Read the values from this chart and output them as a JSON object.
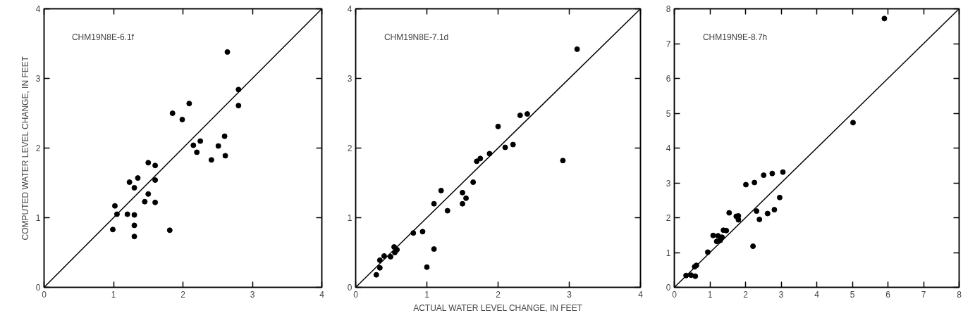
{
  "chart_data": [
    {
      "type": "scatter",
      "ylabel": "COMPUTED WATER LEVEL CHANGE, IN FEET",
      "annotations": [
        "CHM19N8E-6.1f"
      ],
      "xlim": [
        0,
        4
      ],
      "ylim": [
        0,
        4
      ],
      "xticks": [
        0,
        1,
        2,
        3,
        4
      ],
      "yticks": [
        0,
        1,
        2,
        3,
        4
      ],
      "grid": false,
      "series": [
        {
          "marker": "circle",
          "color": "#000000",
          "x": [
            2.64,
            2.8,
            2.8,
            1.85,
            1.99,
            2.09,
            2.15,
            2.25,
            2.2,
            2.41,
            2.51,
            2.6,
            2.61,
            1.5,
            1.6,
            1.6,
            1.35,
            1.23,
            1.3,
            1.5,
            1.45,
            1.6,
            1.02,
            1.05,
            1.2,
            1.3,
            1.3,
            1.3,
            0.99,
            1.81
          ],
          "values": [
            3.38,
            2.84,
            2.61,
            2.5,
            2.41,
            2.64,
            2.04,
            2.1,
            1.94,
            1.83,
            2.03,
            2.17,
            1.89,
            1.79,
            1.75,
            1.54,
            1.57,
            1.51,
            1.43,
            1.34,
            1.23,
            1.22,
            1.17,
            1.05,
            1.05,
            1.04,
            0.89,
            0.73,
            0.83,
            0.82
          ]
        },
        {
          "type": "line",
          "color": "#000000",
          "x": [
            0,
            4
          ],
          "values": [
            0,
            4
          ]
        }
      ]
    },
    {
      "type": "scatter",
      "xlabel": "ACTUAL WATER LEVEL CHANGE, IN FEET",
      "annotations": [
        "CHM19N8E-7.1d"
      ],
      "xlim": [
        0,
        4
      ],
      "ylim": [
        0,
        4
      ],
      "xticks": [
        0,
        1,
        2,
        3,
        4
      ],
      "yticks": [
        0,
        1,
        2,
        3,
        4
      ],
      "grid": false,
      "series": [
        {
          "marker": "circle",
          "color": "#000000",
          "x": [
            3.11,
            2.91,
            2.41,
            2.31,
            2.0,
            2.1,
            2.21,
            1.88,
            1.75,
            1.7,
            1.65,
            1.2,
            1.5,
            1.55,
            1.5,
            1.1,
            1.29,
            0.94,
            0.81,
            1.1,
            1.0,
            0.54,
            0.58,
            0.55,
            0.49,
            0.4,
            0.34,
            0.34,
            0.29
          ],
          "values": [
            3.42,
            1.82,
            2.49,
            2.47,
            2.31,
            2.01,
            2.05,
            1.92,
            1.85,
            1.81,
            1.51,
            1.39,
            1.36,
            1.28,
            1.2,
            1.2,
            1.1,
            0.8,
            0.78,
            0.55,
            0.29,
            0.58,
            0.54,
            0.5,
            0.44,
            0.45,
            0.39,
            0.28,
            0.18
          ]
        },
        {
          "type": "line",
          "color": "#000000",
          "x": [
            0,
            4
          ],
          "values": [
            0,
            4
          ]
        }
      ]
    },
    {
      "type": "scatter",
      "annotations": [
        "CHM19N9E-8.7h"
      ],
      "xlim": [
        0,
        8
      ],
      "ylim": [
        0,
        8
      ],
      "xticks": [
        0,
        1,
        2,
        3,
        4,
        5,
        6,
        7,
        8
      ],
      "yticks": [
        0,
        1,
        2,
        3,
        4,
        5,
        6,
        7,
        8
      ],
      "grid": false,
      "series": [
        {
          "marker": "circle",
          "color": "#000000",
          "x": [
            5.9,
            5.02,
            3.05,
            2.75,
            2.51,
            2.25,
            2.01,
            2.96,
            2.81,
            2.62,
            2.31,
            2.39,
            1.54,
            1.74,
            1.8,
            1.8,
            1.38,
            1.46,
            1.09,
            1.23,
            1.34,
            1.19,
            1.29,
            2.21,
            0.94,
            0.62,
            0.57,
            0.33,
            0.47,
            0.59
          ],
          "values": [
            7.72,
            4.73,
            3.31,
            3.27,
            3.22,
            3.01,
            2.95,
            2.58,
            2.23,
            2.12,
            2.19,
            1.95,
            2.14,
            2.04,
            2.05,
            1.94,
            1.64,
            1.63,
            1.49,
            1.48,
            1.44,
            1.32,
            1.35,
            1.18,
            1.01,
            0.63,
            0.59,
            0.34,
            0.35,
            0.32
          ]
        },
        {
          "type": "line",
          "color": "#000000",
          "x": [
            0,
            8
          ],
          "values": [
            0,
            8
          ]
        }
      ]
    }
  ]
}
